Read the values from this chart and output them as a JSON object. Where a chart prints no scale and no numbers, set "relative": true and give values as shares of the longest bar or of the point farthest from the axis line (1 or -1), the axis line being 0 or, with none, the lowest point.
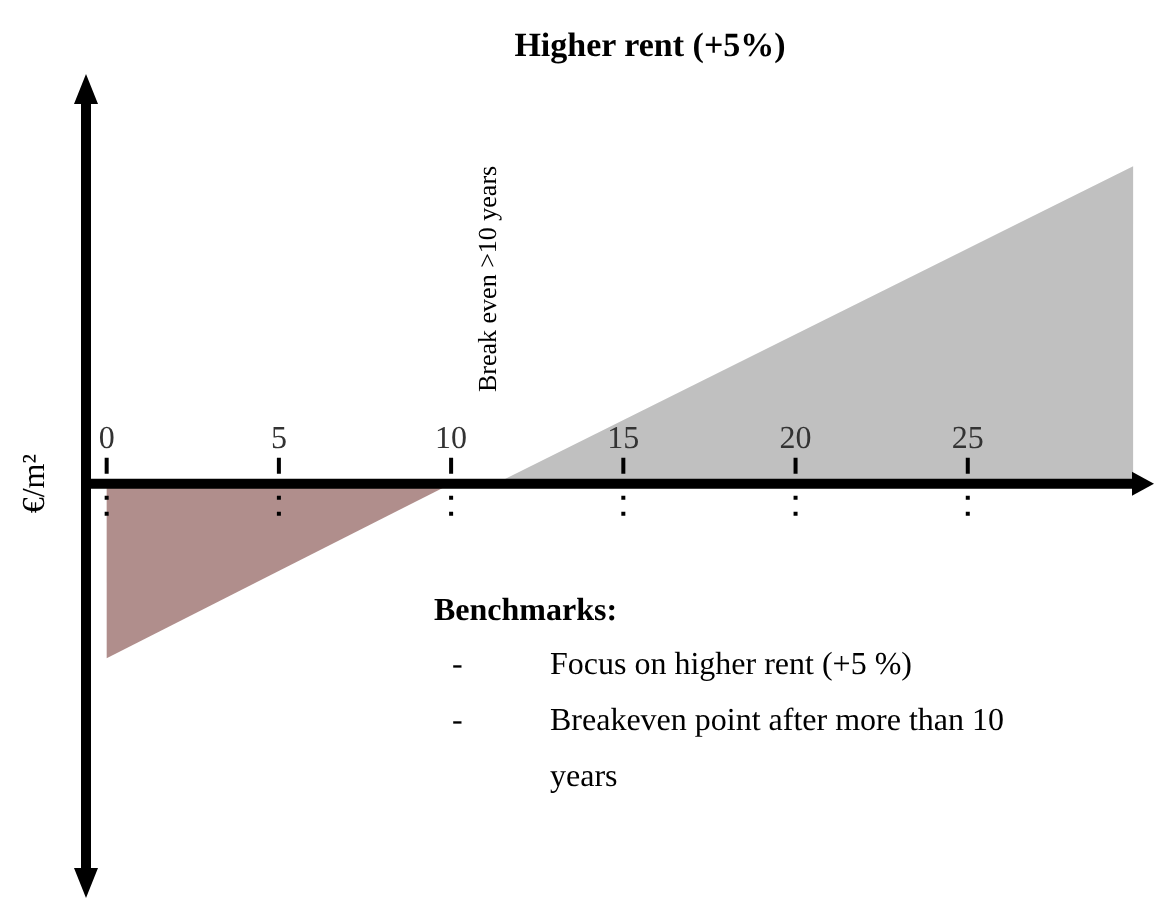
{
  "chart_data": {
    "type": "area",
    "title": "Higher rent (+5%)",
    "ylabel": "€/m²",
    "relative": true,
    "xlim": [
      -0.6,
      30
    ],
    "xticks": [
      0,
      5,
      10,
      15,
      20,
      25
    ],
    "series": [
      {
        "color": "#b08e8c",
        "x": [
          0,
          10
        ],
        "values": [
          -0.55,
          0
        ]
      },
      {
        "color": "#c0c0c0",
        "x": [
          11.3,
          29.8
        ],
        "values": [
          0,
          1
        ]
      }
    ],
    "annotations": [
      "Break even >10 years",
      "Benchmarks:",
      "- Focus on higher rent (+5 %)",
      "- Breakeven point after more than 10 years"
    ]
  }
}
